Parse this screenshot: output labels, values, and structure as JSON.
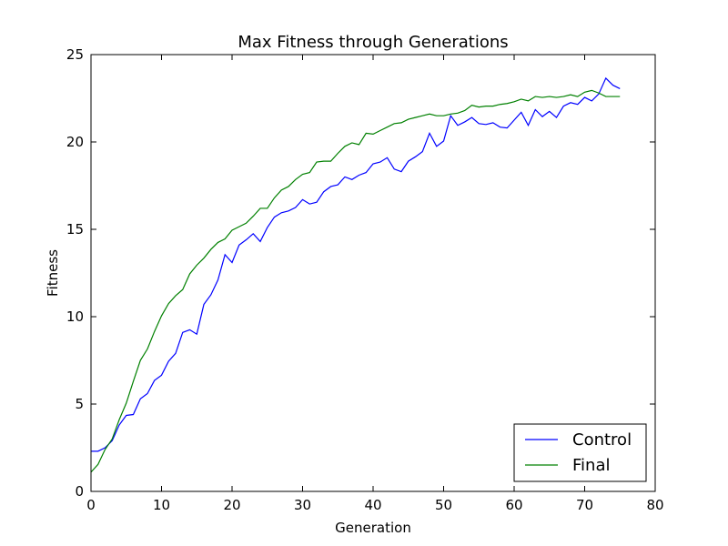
{
  "chart_data": {
    "type": "line",
    "title": "Max Fitness through Generations",
    "xlabel": "Generation",
    "ylabel": "Fitness",
    "xlim": [
      0,
      80
    ],
    "ylim": [
      0,
      25
    ],
    "xticks": [
      0,
      10,
      20,
      30,
      40,
      50,
      60,
      70,
      80
    ],
    "yticks": [
      0,
      5,
      10,
      15,
      20,
      25
    ],
    "grid": false,
    "legend_position": "lower-right",
    "series": [
      {
        "name": "Control",
        "color": "#0000ff",
        "x": [
          0,
          1,
          2,
          3,
          4,
          5,
          6,
          7,
          8,
          9,
          10,
          11,
          12,
          13,
          14,
          15,
          16,
          17,
          18,
          19,
          20,
          21,
          22,
          23,
          24,
          25,
          26,
          27,
          28,
          29,
          30,
          31,
          32,
          33,
          34,
          35,
          36,
          37,
          38,
          39,
          40,
          41,
          42,
          43,
          44,
          45,
          46,
          47,
          48,
          49,
          50,
          51,
          52,
          53,
          54,
          55,
          56,
          57,
          58,
          59,
          60,
          61,
          62,
          63,
          64,
          65,
          66,
          67,
          68,
          69,
          70,
          71,
          72,
          73,
          74,
          75
        ],
        "values": [
          2.3,
          2.3,
          2.5,
          2.9,
          3.8,
          4.35,
          4.4,
          5.3,
          5.6,
          6.35,
          6.65,
          7.45,
          7.9,
          9.1,
          9.25,
          9.0,
          10.7,
          11.25,
          12.1,
          13.55,
          13.1,
          14.1,
          14.4,
          14.75,
          14.3,
          15.1,
          15.7,
          15.95,
          16.05,
          16.25,
          16.7,
          16.45,
          16.55,
          17.15,
          17.45,
          17.55,
          18.0,
          17.85,
          18.1,
          18.25,
          18.75,
          18.85,
          19.1,
          18.45,
          18.3,
          18.9,
          19.15,
          19.45,
          20.5,
          19.75,
          20.05,
          21.5,
          20.95,
          21.15,
          21.4,
          21.05,
          21.0,
          21.1,
          20.85,
          20.8,
          21.25,
          21.7,
          20.95,
          21.85,
          21.45,
          21.75,
          21.4,
          22.05,
          22.25,
          22.15,
          22.55,
          22.35,
          22.75,
          23.65,
          23.25,
          23.05
        ]
      },
      {
        "name": "Final",
        "color": "#008000",
        "x": [
          0,
          1,
          2,
          3,
          4,
          5,
          6,
          7,
          8,
          9,
          10,
          11,
          12,
          13,
          14,
          15,
          16,
          17,
          18,
          19,
          20,
          21,
          22,
          23,
          24,
          25,
          26,
          27,
          28,
          29,
          30,
          31,
          32,
          33,
          34,
          35,
          36,
          37,
          38,
          39,
          40,
          41,
          42,
          43,
          44,
          45,
          46,
          47,
          48,
          49,
          50,
          51,
          52,
          53,
          54,
          55,
          56,
          57,
          58,
          59,
          60,
          61,
          62,
          63,
          64,
          65,
          66,
          67,
          68,
          69,
          70,
          71,
          72,
          73,
          74,
          75
        ],
        "values": [
          1.1,
          1.55,
          2.4,
          3.0,
          4.1,
          5.05,
          6.3,
          7.5,
          8.15,
          9.15,
          10.05,
          10.75,
          11.2,
          11.55,
          12.45,
          12.95,
          13.35,
          13.85,
          14.25,
          14.45,
          14.95,
          15.15,
          15.35,
          15.75,
          16.2,
          16.2,
          16.8,
          17.25,
          17.45,
          17.85,
          18.15,
          18.25,
          18.85,
          18.9,
          18.9,
          19.35,
          19.75,
          19.95,
          19.85,
          20.5,
          20.45,
          20.65,
          20.85,
          21.05,
          21.1,
          21.3,
          21.4,
          21.5,
          21.6,
          21.5,
          21.5,
          21.6,
          21.65,
          21.8,
          22.1,
          22.0,
          22.05,
          22.05,
          22.15,
          22.2,
          22.3,
          22.45,
          22.35,
          22.6,
          22.55,
          22.6,
          22.55,
          22.6,
          22.7,
          22.6,
          22.85,
          22.95,
          22.8,
          22.6,
          22.6,
          22.6
        ]
      }
    ]
  }
}
